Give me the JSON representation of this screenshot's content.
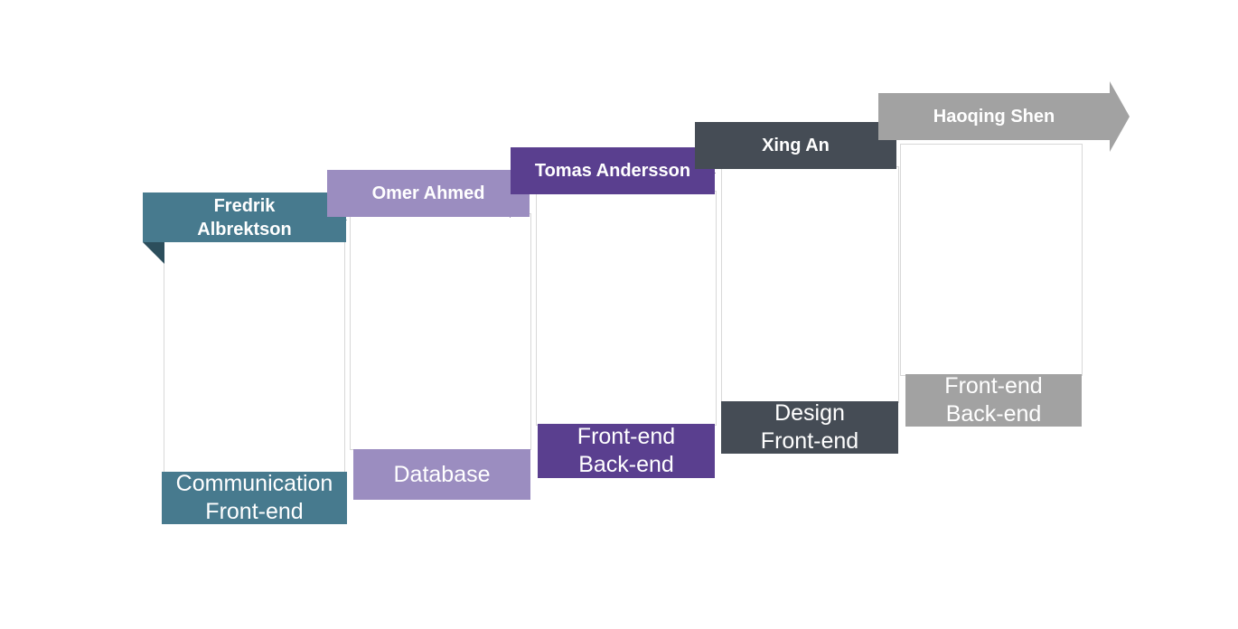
{
  "members": [
    {
      "name": "Fredrik Albrektson",
      "name_line1": "Fredrik",
      "name_line2": "Albrektson",
      "role_line1": "Communication",
      "role_line2": "Front-end",
      "color": "#477a8e",
      "fold_color": "#2c4e5c"
    },
    {
      "name": "Omer Ahmed",
      "role_line1": "Database",
      "role_line2": "",
      "color": "#9b8dc0",
      "fold_color": "#3b2c6e"
    },
    {
      "name": "Tomas Andersson",
      "role_line1": "Front-end",
      "role_line2": "Back-end",
      "color": "#5a3f8f",
      "fold_color": "#2e1e55"
    },
    {
      "name": "Xing An",
      "role_line1": "Design",
      "role_line2": "Front-end",
      "color": "#454c55",
      "fold_color": "#262a30"
    },
    {
      "name": "Haoqing Shen",
      "role_line1": "Front-end",
      "role_line2": "Back-end",
      "color": "#a2a2a2",
      "fold_color": "#6e6e6e"
    }
  ]
}
